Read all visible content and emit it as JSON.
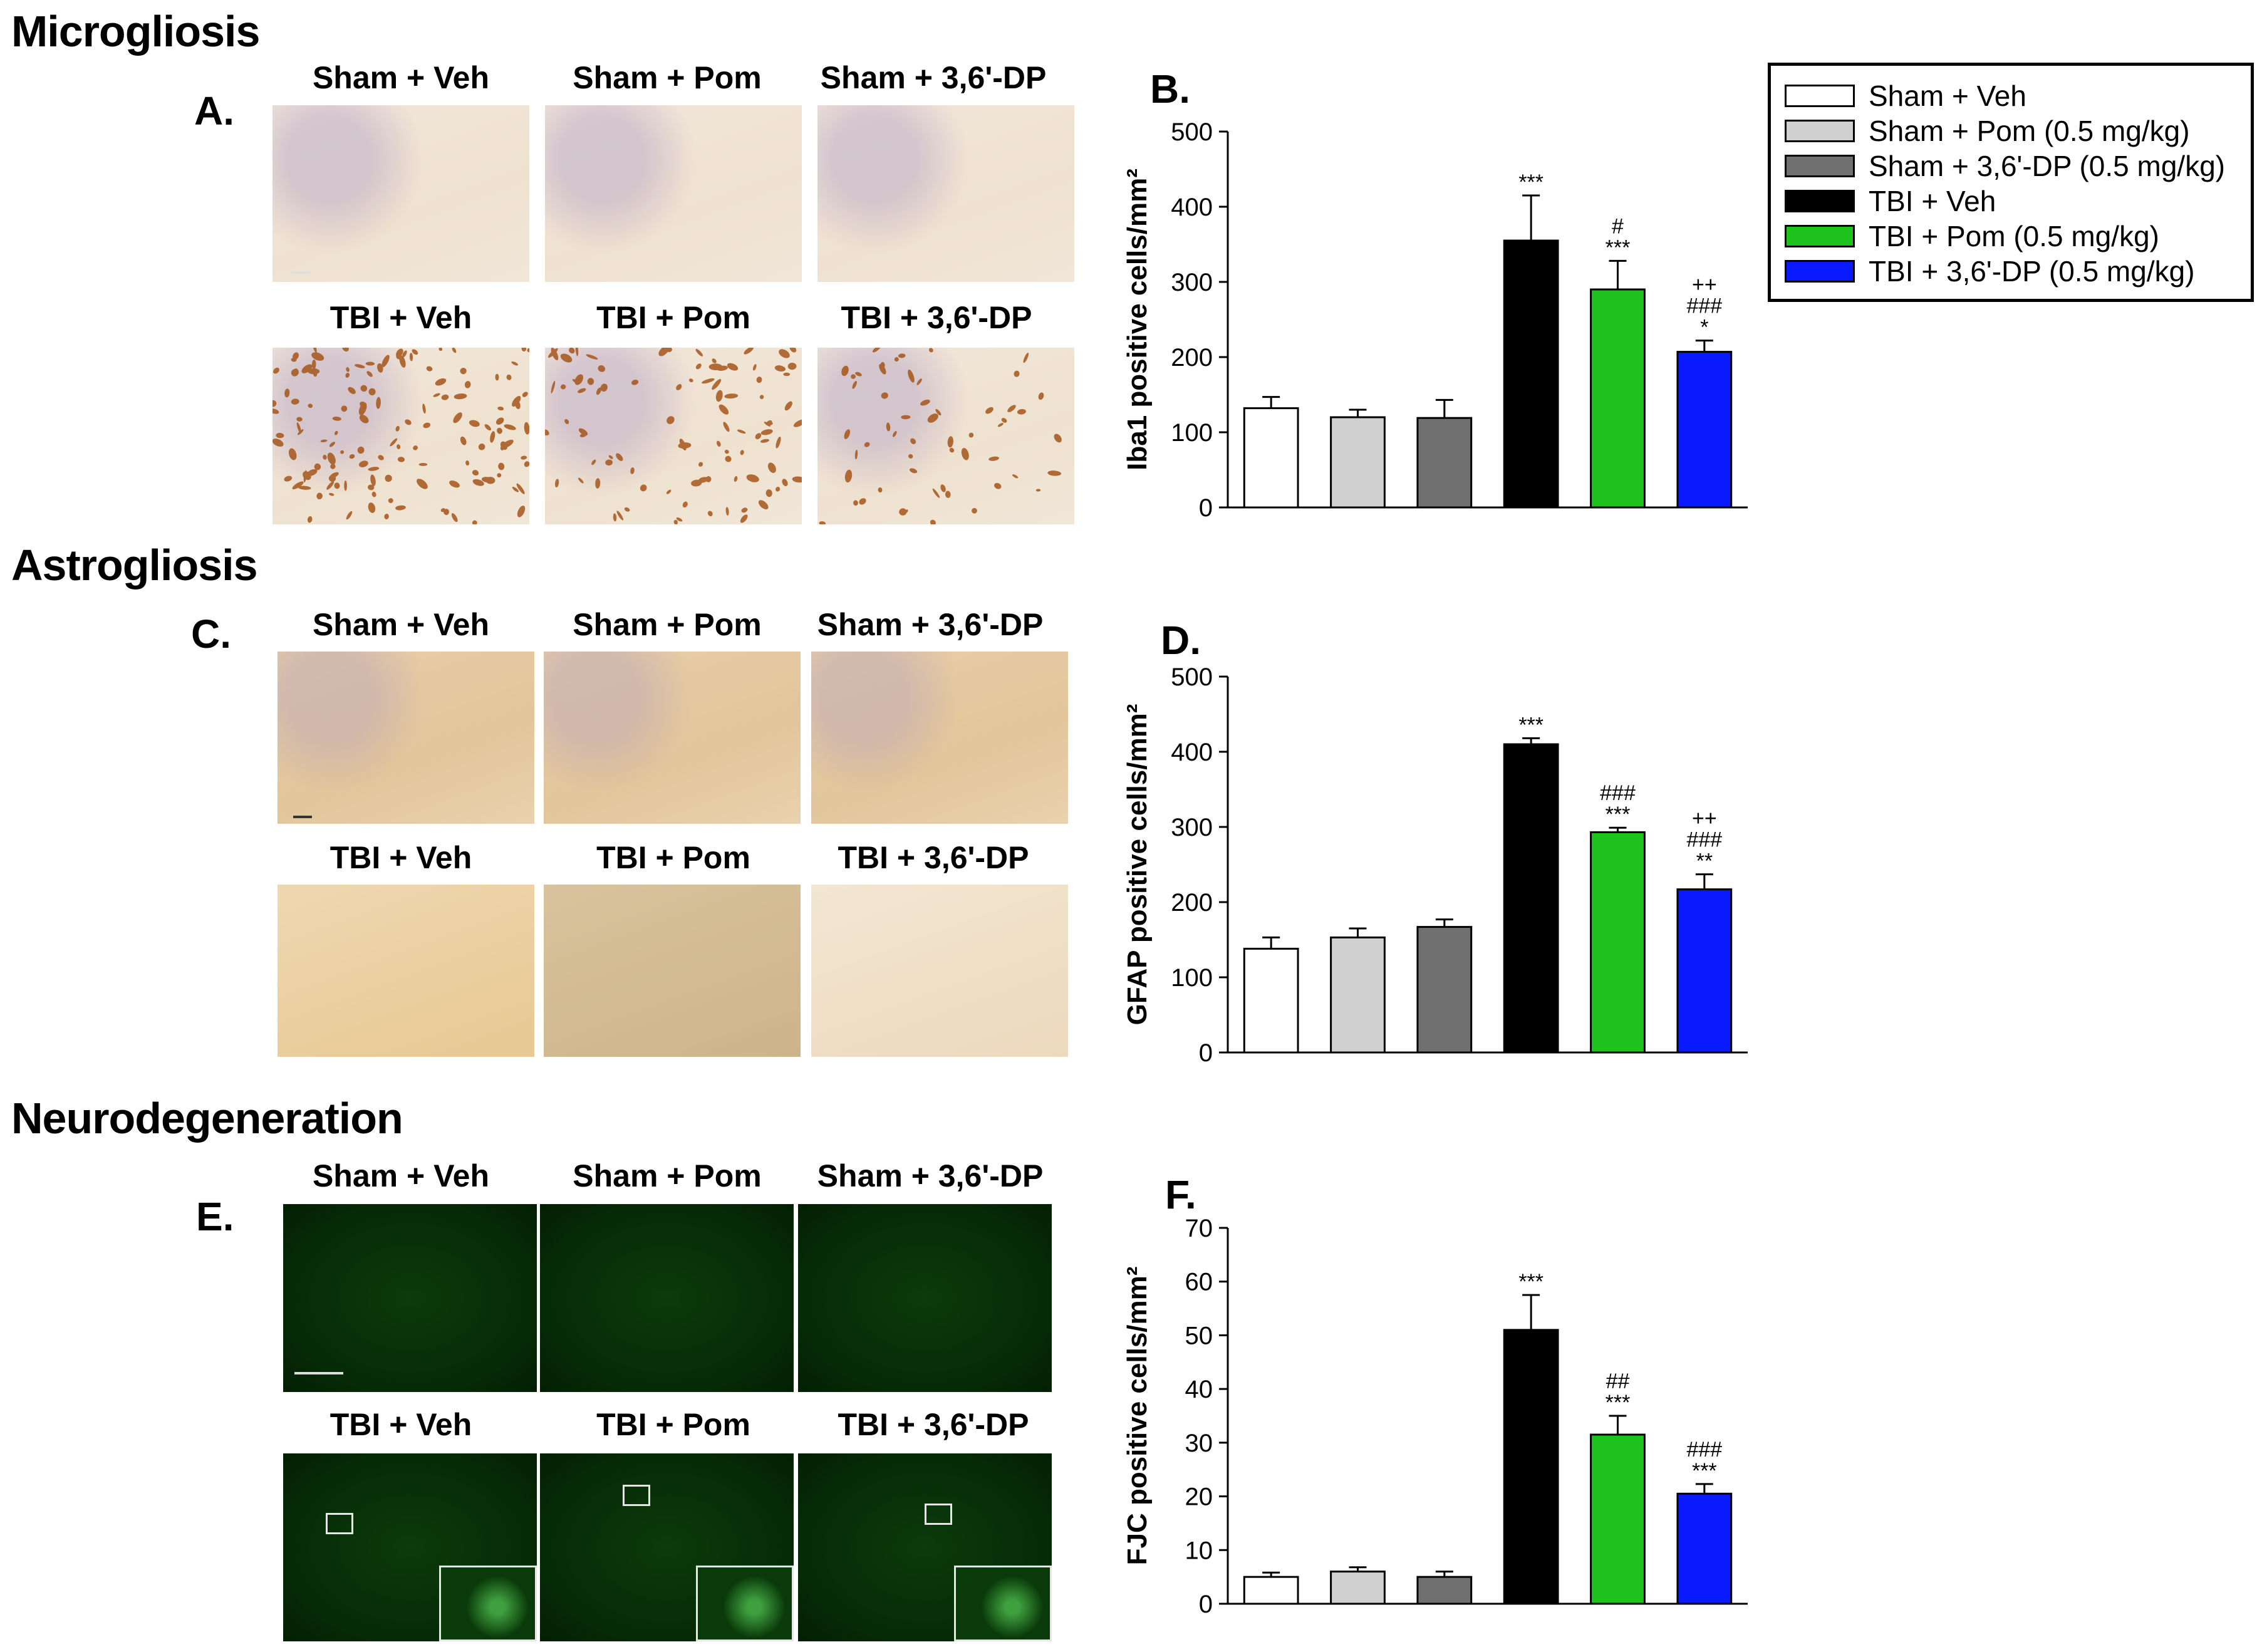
{
  "sections": {
    "microgliosis": "Microgliosis",
    "astrogliosis": "Astrogliosis",
    "neurodegeneration": "Neurodegeneration"
  },
  "panel_letters": {
    "a": "A.",
    "b": "B.",
    "c": "C.",
    "d": "D.",
    "e": "E.",
    "f": "F."
  },
  "image_labels": [
    "Sham + Veh",
    "Sham + Pom",
    "Sham + 3,6'-DP",
    "TBI + Veh",
    "TBI + Pom",
    "TBI + 3,6'-DP"
  ],
  "legend": {
    "items": [
      {
        "label": "Sham + Veh",
        "color": "#ffffff"
      },
      {
        "label": "Sham + Pom (0.5 mg/kg)",
        "color": "#d0d0d0"
      },
      {
        "label": "Sham + 3,6'-DP (0.5 mg/kg)",
        "color": "#707070"
      },
      {
        "label": "TBI + Veh",
        "color": "#000000"
      },
      {
        "label": "TBI + Pom (0.5 mg/kg)",
        "color": "#1ec31e"
      },
      {
        "label": "TBI + 3,6'-DP (0.5 mg/kg)",
        "color": "#0a1aff"
      }
    ]
  },
  "chart_data": [
    {
      "id": "B",
      "type": "bar",
      "ylabel": "Iba1 positive cells/mm²",
      "ylim": [
        0,
        500
      ],
      "yticks": [
        0,
        100,
        200,
        300,
        400,
        500
      ],
      "values": [
        132,
        120,
        119,
        355,
        290,
        207
      ],
      "errors": [
        15,
        10,
        24,
        60,
        38,
        15
      ],
      "significance": [
        "",
        "",
        "",
        "***",
        "#\n***",
        "++\n###\n*"
      ]
    },
    {
      "id": "D",
      "type": "bar",
      "ylabel": "GFAP positive cells/mm²",
      "ylim": [
        0,
        500
      ],
      "yticks": [
        0,
        100,
        200,
        300,
        400,
        500
      ],
      "values": [
        138,
        153,
        167,
        410,
        293,
        217
      ],
      "errors": [
        15,
        12,
        10,
        8,
        6,
        20
      ],
      "significance": [
        "",
        "",
        "",
        "***",
        "###\n***",
        "++\n###\n**"
      ]
    },
    {
      "id": "F",
      "type": "bar",
      "ylabel": "FJC positive cells/mm²",
      "ylim": [
        0,
        70
      ],
      "yticks": [
        0,
        10,
        20,
        30,
        40,
        50,
        60,
        70
      ],
      "values": [
        5,
        6,
        5,
        51,
        31.5,
        20.5
      ],
      "errors": [
        0.8,
        0.8,
        1,
        6.5,
        3.5,
        1.8
      ],
      "significance": [
        "",
        "",
        "",
        "***",
        "##\n***",
        "###\n***"
      ]
    }
  ]
}
